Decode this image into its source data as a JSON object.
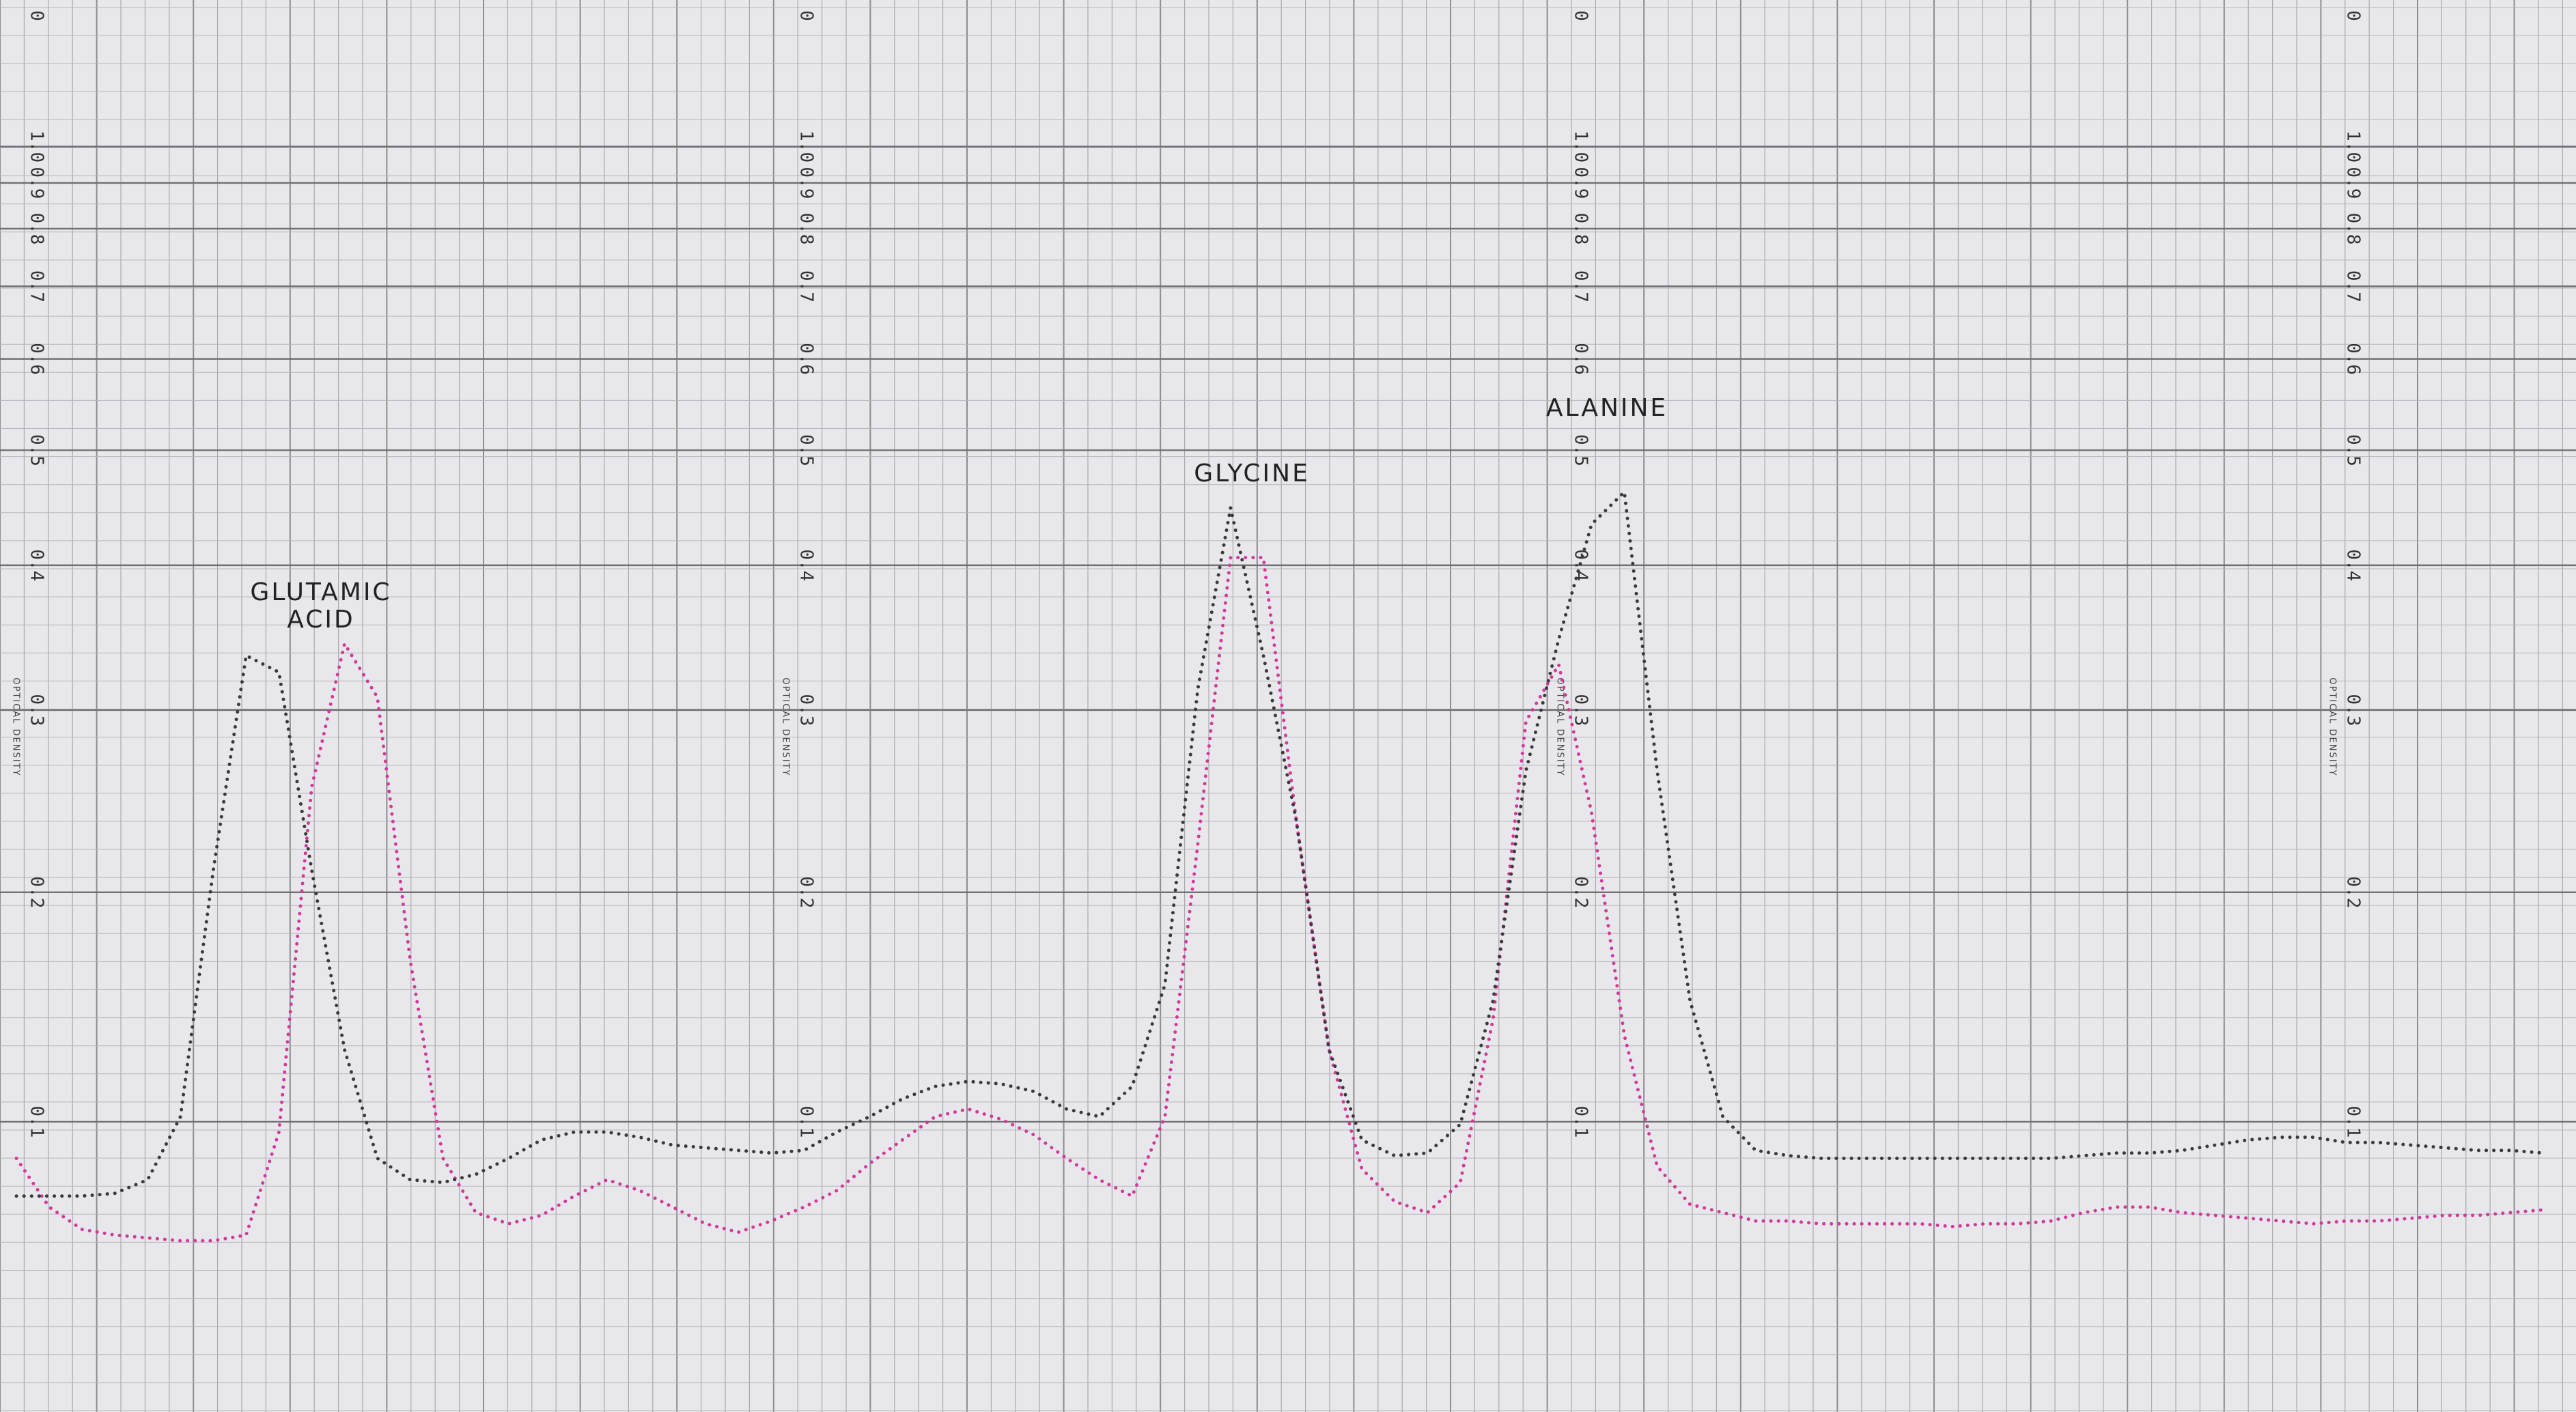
{
  "chart_data": {
    "type": "line",
    "top_label": "0",
    "axis_label": "OPTICAL DENSITY",
    "scale": "absorbance",
    "annotations": [
      "GLUTAMIC ACID",
      "GLYCINE",
      "ALANINE"
    ],
    "ylim": [
      0,
      3
    ],
    "yticks": [
      {
        "value": 1,
        "label": "1.0"
      },
      0.9,
      0.8,
      0.7,
      0.6,
      0.5,
      0.4,
      0.3,
      0.2,
      0.1
    ],
    "grid": true,
    "categories": [
      null,
      null,
      null,
      null,
      null,
      null,
      null,
      null,
      null,
      null,
      null,
      null,
      null,
      null,
      null,
      null,
      null,
      null,
      null,
      null,
      null,
      null,
      null,
      null,
      null,
      null,
      null,
      null,
      null,
      null,
      null,
      null,
      null,
      null,
      null,
      null,
      null,
      null,
      null,
      null,
      null,
      null,
      null,
      null,
      null,
      null,
      null,
      null,
      null,
      null,
      null,
      null,
      null,
      null,
      null,
      null,
      null,
      null,
      null,
      null,
      null,
      null,
      null,
      null,
      null,
      null,
      null,
      null,
      null,
      null,
      null,
      null,
      null,
      null,
      null,
      null,
      null,
      null
    ],
    "series": [
      {
        "color": "#d23a9a",
        "values": [
          0.086,
          0.068,
          0.06,
          0.058,
          0.057,
          0.056,
          0.056,
          0.058,
          0.096,
          0.255,
          0.343,
          0.308,
          0.168,
          0.086,
          0.066,
          0.062,
          0.065,
          0.072,
          0.078,
          0.074,
          0.068,
          0.062,
          0.059,
          0.063,
          0.068,
          0.074,
          0.084,
          0.093,
          0.102,
          0.105,
          0.101,
          0.095,
          0.086,
          0.078,
          0.072,
          0.102,
          0.224,
          0.406,
          0.406,
          0.237,
          0.129,
          0.082,
          0.07,
          0.066,
          0.077,
          0.142,
          0.293,
          0.329,
          0.241,
          0.135,
          0.083,
          0.069,
          0.066,
          0.063,
          0.063,
          0.062,
          0.062,
          0.062,
          0.062,
          0.061,
          0.062,
          0.062,
          0.063,
          0.066,
          0.068,
          0.068,
          0.066,
          0.065,
          0.064,
          0.063,
          0.062,
          0.063,
          0.063,
          0.064,
          0.065,
          0.065,
          0.066,
          0.067
        ]
      },
      {
        "color": "#3a3a3a",
        "values": [
          0.072,
          0.072,
          0.072,
          0.073,
          0.078,
          0.102,
          0.211,
          0.335,
          0.324,
          0.211,
          0.129,
          0.086,
          0.078,
          0.077,
          0.08,
          0.086,
          0.093,
          0.096,
          0.096,
          0.094,
          0.091,
          0.09,
          0.089,
          0.088,
          0.089,
          0.096,
          0.102,
          0.109,
          0.114,
          0.116,
          0.115,
          0.112,
          0.105,
          0.102,
          0.114,
          0.157,
          0.313,
          0.447,
          0.335,
          0.237,
          0.129,
          0.093,
          0.087,
          0.088,
          0.099,
          0.15,
          0.264,
          0.346,
          0.433,
          0.461,
          0.264,
          0.15,
          0.102,
          0.089,
          0.087,
          0.086,
          0.086,
          0.086,
          0.086,
          0.086,
          0.086,
          0.086,
          0.086,
          0.087,
          0.088,
          0.088,
          0.089,
          0.091,
          0.093,
          0.094,
          0.094,
          0.092,
          0.092,
          0.091,
          0.09,
          0.089,
          0.089,
          0.088
        ]
      }
    ]
  }
}
